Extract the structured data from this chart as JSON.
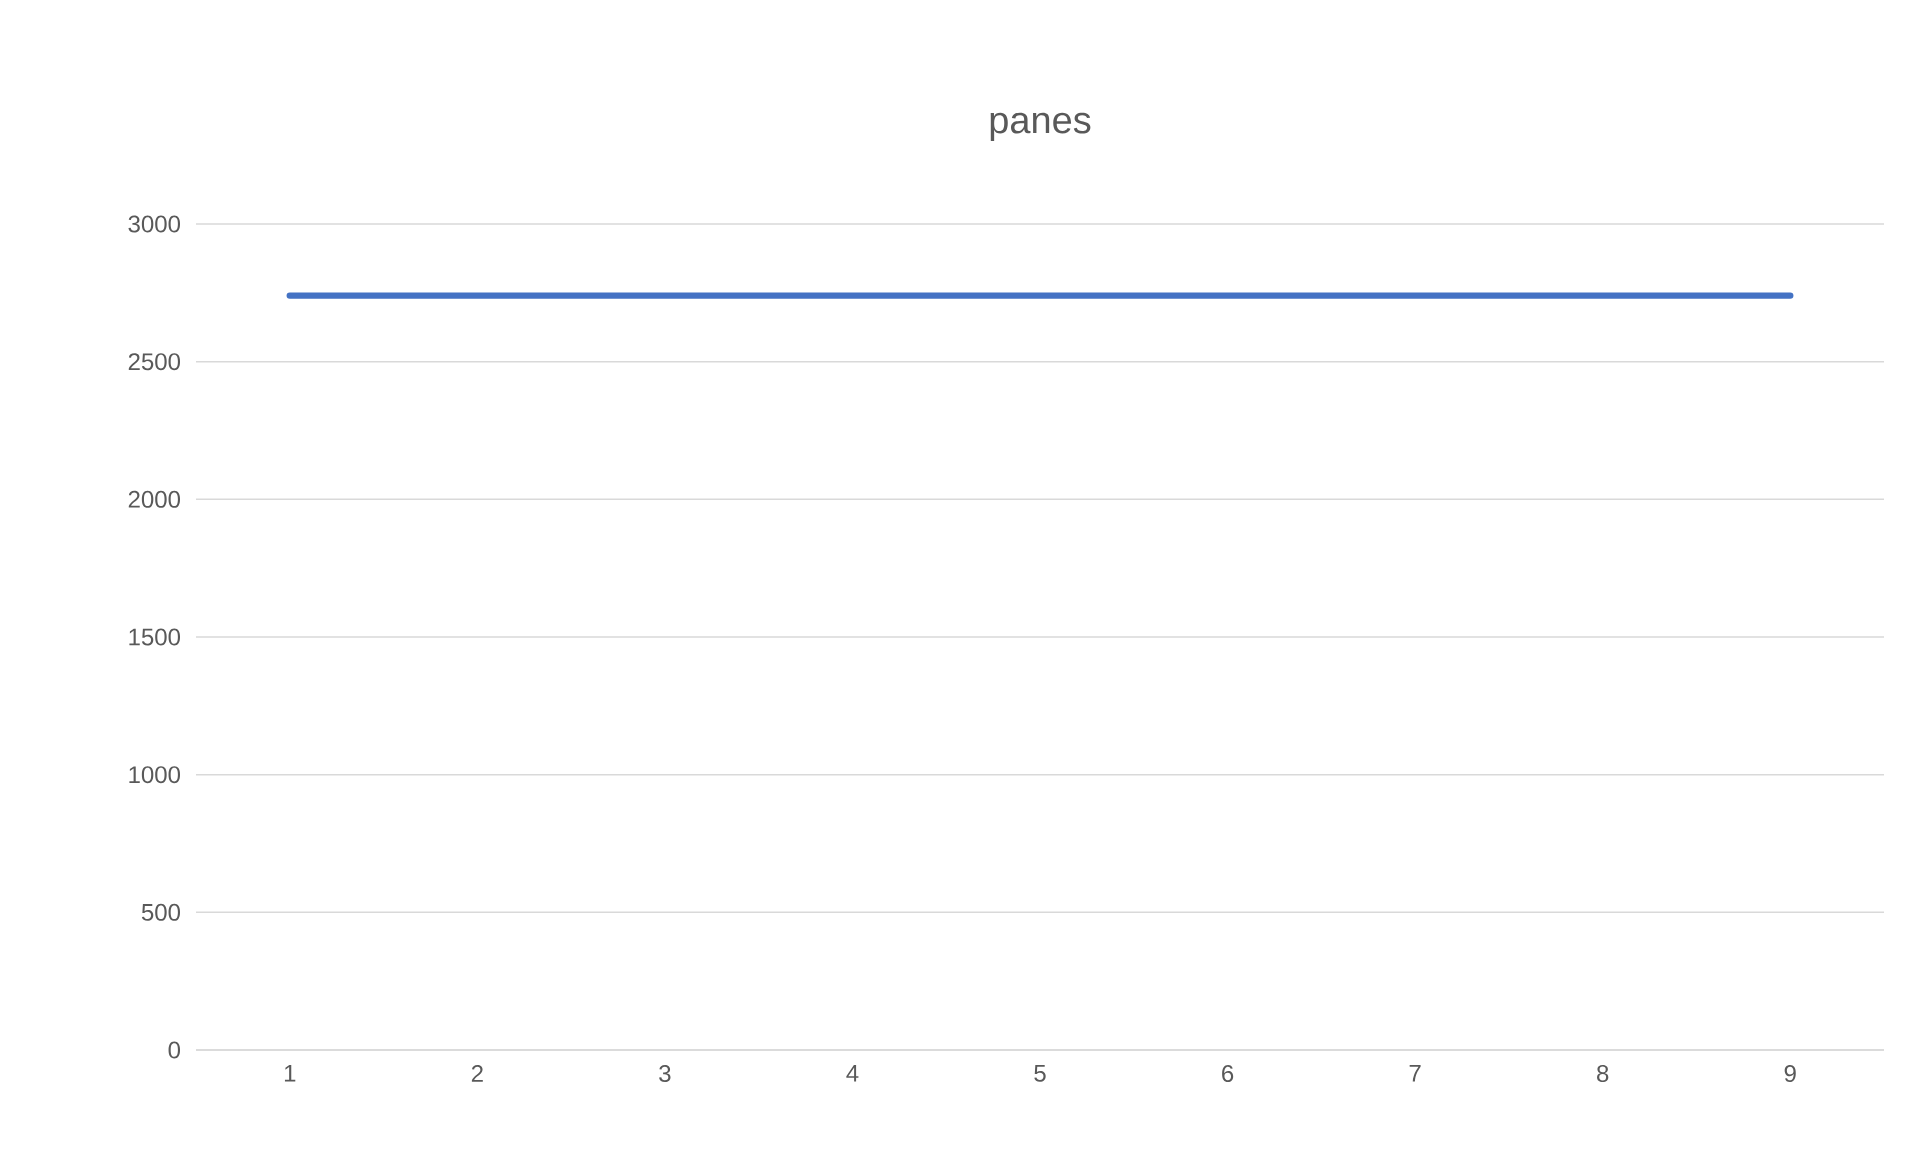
{
  "chart_data": {
    "type": "line",
    "title": "panes",
    "categories": [
      "1",
      "2",
      "3",
      "4",
      "5",
      "6",
      "7",
      "8",
      "9"
    ],
    "series": [
      {
        "color": "#4472c4",
        "values": [
          2740,
          2740,
          2740,
          2740,
          2740,
          2740,
          2740,
          2740,
          2740
        ]
      }
    ],
    "ylim": [
      0,
      3000
    ],
    "yticks": [
      0,
      500,
      1000,
      1500,
      2000,
      2500,
      3000
    ],
    "grid": "y",
    "marker": "none",
    "line_style": "solid"
  }
}
